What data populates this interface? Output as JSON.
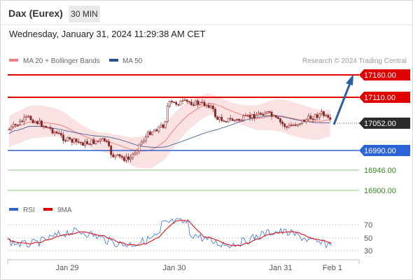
{
  "header": {
    "title": "Dax (Eurex)",
    "timeframe": "30 MIN"
  },
  "datetime": "Wednesday, January 31, 2024 11:29:38 AM CET",
  "legend": {
    "ma20": "MA 20 + Bollinger Bands",
    "ma50": "MA 50",
    "credit": "Research © 2024 Trading Central",
    "rsi": "RSI",
    "rsi_ma": "9MA"
  },
  "colors": {
    "resistance": "#e00000",
    "support": "#2a64d6",
    "target": "#58a642",
    "current": "#2b2b2b",
    "candle": "#8b2323",
    "bollinger_fill": "#fbe4e4",
    "ma20": "#f08080",
    "ma50": "#2c4f8f",
    "arrow": "#2c5fa0"
  },
  "price_levels": [
    {
      "name": "resistance-2",
      "value": "17160.00",
      "kind": "resistance"
    },
    {
      "name": "resistance-1",
      "value": "17110.00",
      "kind": "resistance"
    },
    {
      "name": "current-price",
      "value": "17052.00",
      "kind": "current"
    },
    {
      "name": "pivot",
      "value": "16990.00",
      "kind": "support"
    },
    {
      "name": "support-1",
      "value": "16946.00",
      "kind": "target"
    },
    {
      "name": "support-2",
      "value": "16900.00",
      "kind": "target"
    }
  ],
  "rsi_levels": [
    "70",
    "50",
    "30"
  ],
  "x_labels": [
    "Jan 29",
    "Jan 30",
    "Jan 31",
    "Feb 1"
  ]
}
